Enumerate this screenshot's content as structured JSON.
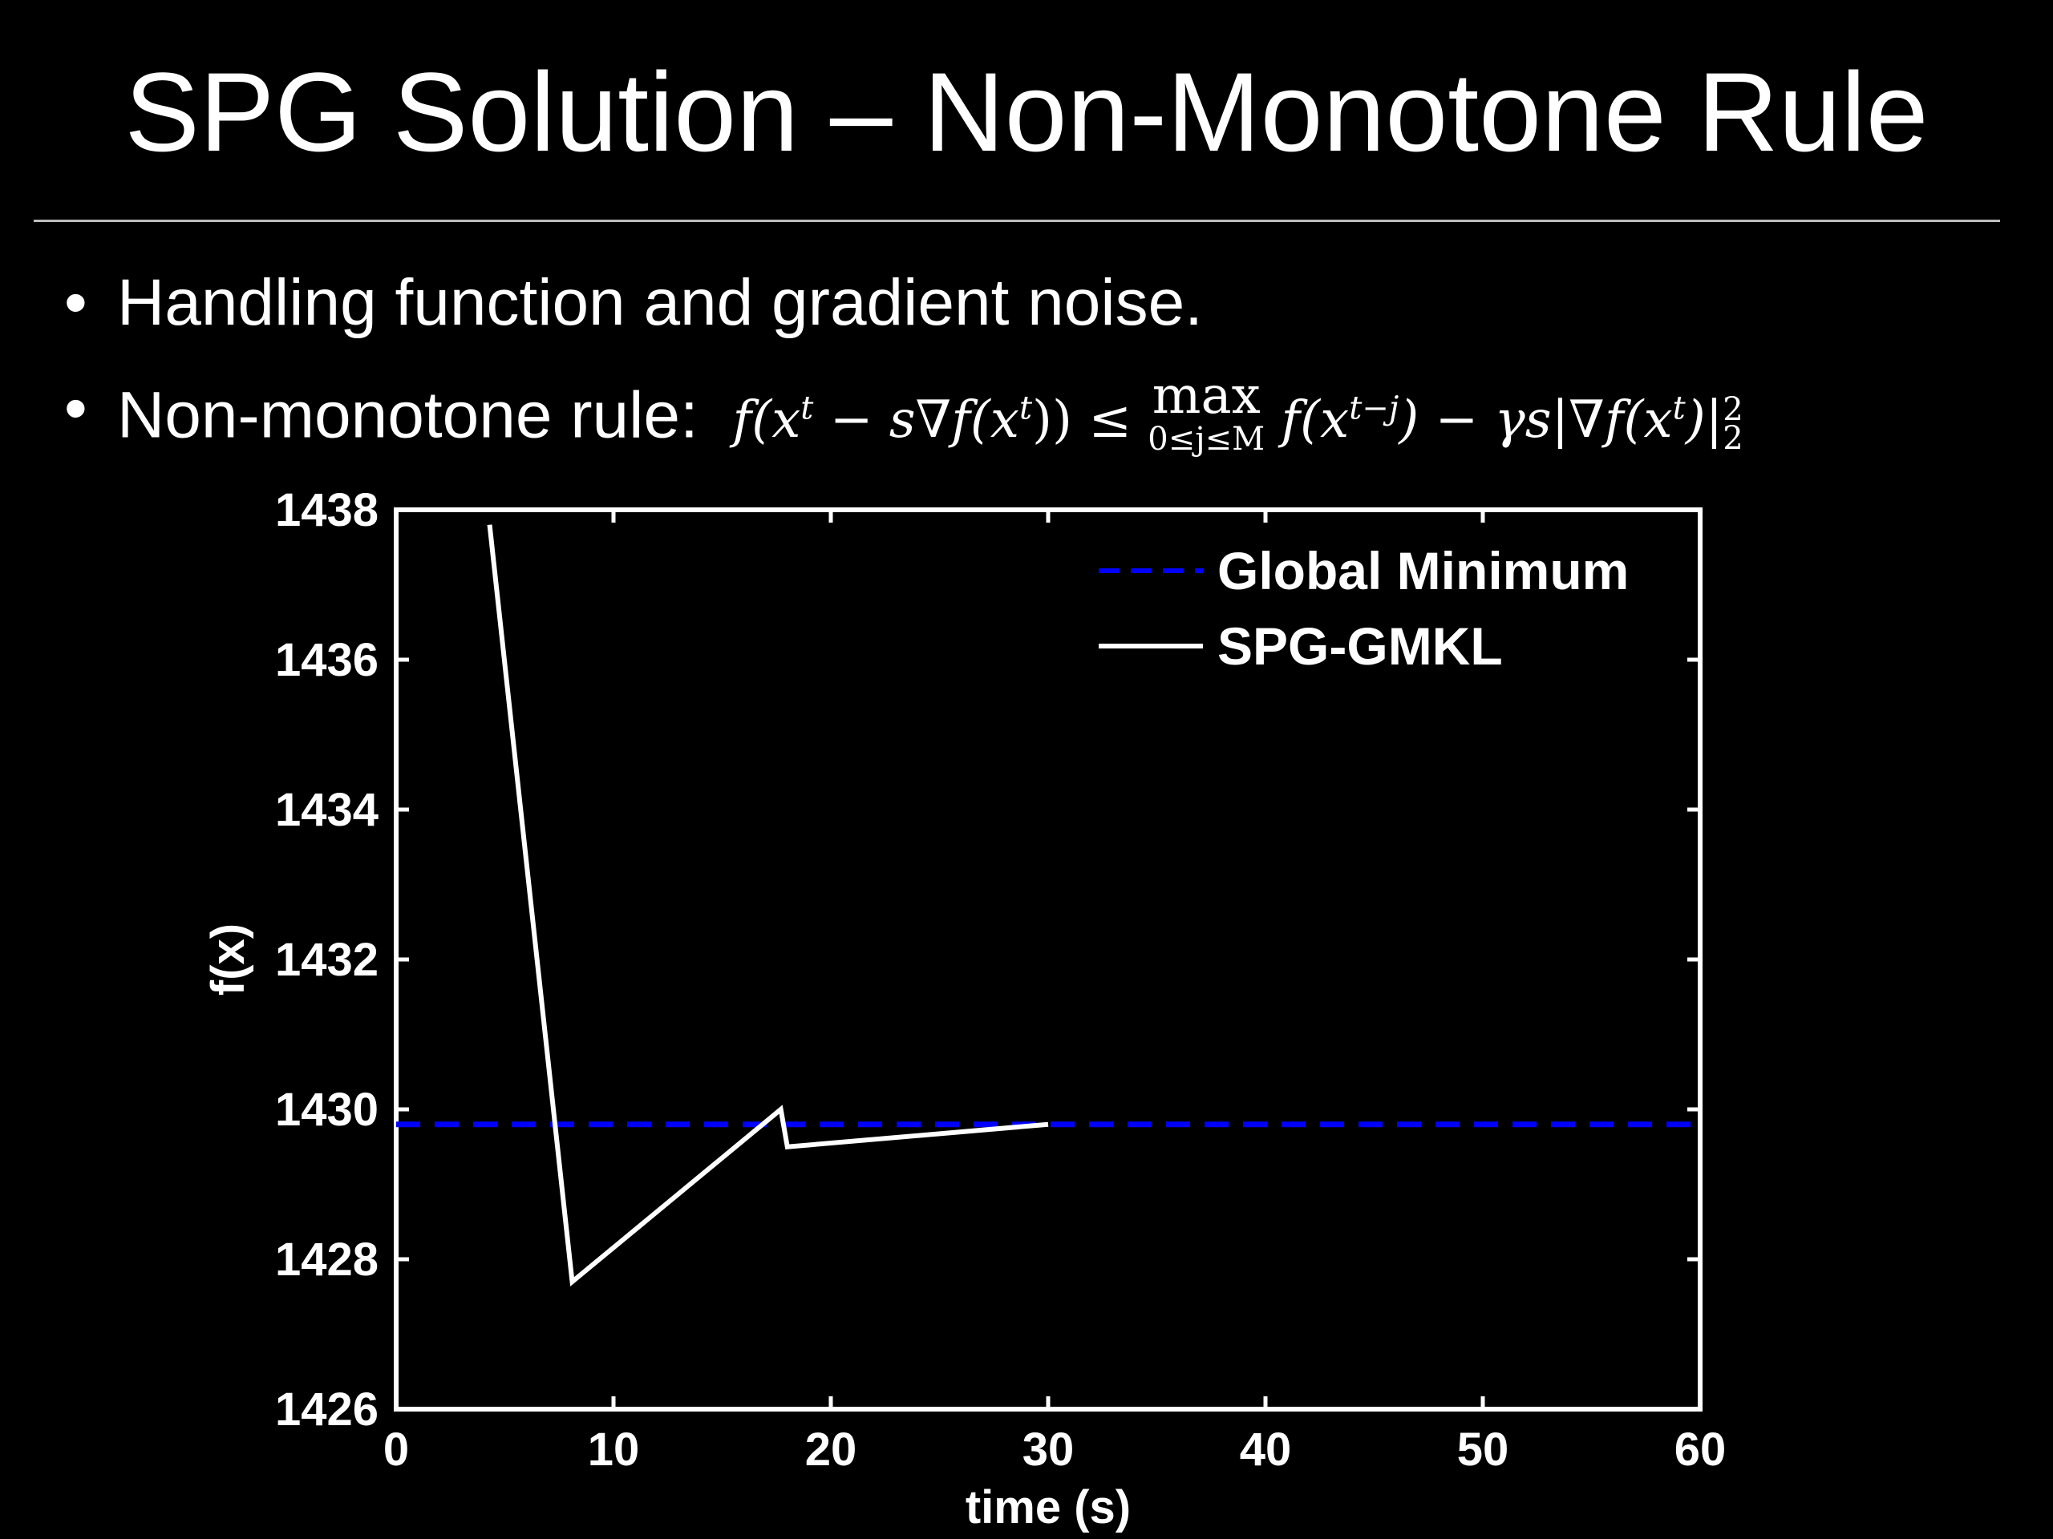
{
  "slide": {
    "title": "SPG Solution – Non-Monotone Rule",
    "bullets": [
      {
        "dot": "•",
        "text": "Handling function and gradient noise."
      },
      {
        "dot": "•",
        "text": "Non-monotone rule:"
      }
    ],
    "formula": {
      "lhs": "f(x",
      "sup_t": "t",
      "mid": " − s∇f(x",
      "close_lhs": ")) ≤ ",
      "max_op": "max",
      "max_sub": "0≤j≤M",
      "rhs": " f(x",
      "sup_tj": "t−j",
      "rhs2": ") − γs|∇f(x",
      "end": ")|",
      "norm_sup": "2",
      "norm_sub": "2"
    }
  },
  "chart_data": {
    "type": "line",
    "title": "",
    "xlabel": "time (s)",
    "ylabel": "f(x)",
    "xlim": [
      0,
      60
    ],
    "ylim": [
      1426,
      1438
    ],
    "xticks": [
      0,
      10,
      20,
      30,
      40,
      50,
      60
    ],
    "yticks": [
      1426,
      1428,
      1430,
      1432,
      1434,
      1436,
      1438
    ],
    "grid": false,
    "legend_position": "top-right",
    "series": [
      {
        "name": "Global Minimum",
        "style": "dashed",
        "color": "#0000ff",
        "x": [
          0,
          60
        ],
        "y": [
          1429.8,
          1429.8
        ]
      },
      {
        "name": "SPG-GMKL",
        "style": "solid",
        "color": "#ffffff",
        "x": [
          4.3,
          8.1,
          17.7,
          18.0,
          30.0
        ],
        "y": [
          1437.8,
          1427.7,
          1430.0,
          1429.5,
          1429.8
        ]
      }
    ]
  }
}
